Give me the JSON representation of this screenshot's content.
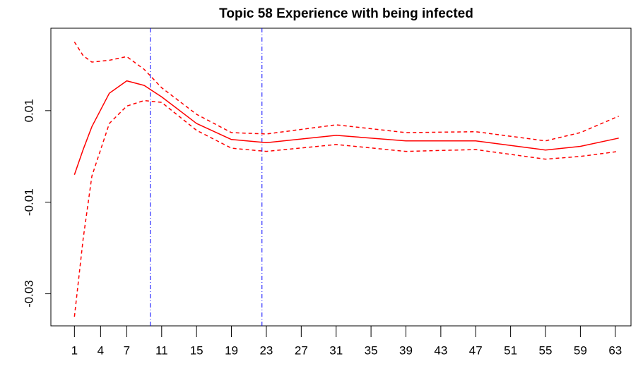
{
  "chart_data": {
    "type": "line",
    "title": "Topic 58 Experience with being infected",
    "x": [
      1,
      2,
      3,
      5,
      7,
      9,
      11,
      15,
      19,
      23,
      31,
      39,
      47,
      55,
      59,
      63.4
    ],
    "series": [
      {
        "color": "#ff0000",
        "dash": false,
        "values": [
          -0.004,
          0.0015,
          0.0065,
          0.0138,
          0.0165,
          0.0155,
          0.013,
          0.0072,
          0.0037,
          0.003,
          0.0046,
          0.0034,
          0.0034,
          0.0014,
          0.0022,
          0.004
        ]
      },
      {
        "color": "#ff0000",
        "dash": true,
        "values": [
          0.025,
          0.022,
          0.0206,
          0.021,
          0.0218,
          0.019,
          0.015,
          0.0092,
          0.0052,
          0.0049,
          0.0069,
          0.0052,
          0.0054,
          0.0034,
          0.0052,
          0.0088
        ]
      },
      {
        "color": "#ff0000",
        "dash": true,
        "values": [
          -0.035,
          -0.018,
          -0.0043,
          0.0072,
          0.011,
          0.0122,
          0.0118,
          0.0057,
          0.0018,
          0.0011,
          0.0026,
          0.0011,
          0.0015,
          -0.0006,
          0,
          0.0011
        ]
      }
    ],
    "vlines": {
      "color": "#0000ff",
      "values": [
        9.7,
        22.5
      ]
    },
    "xlim": [
      -1.7,
      64.8
    ],
    "xticks": [
      1,
      4,
      7,
      11,
      15,
      19,
      23,
      27,
      31,
      35,
      39,
      43,
      47,
      51,
      55,
      59,
      63
    ],
    "ylim": [
      -0.037,
      0.028
    ],
    "yticks": [
      -0.03,
      -0.01,
      0.01
    ]
  }
}
